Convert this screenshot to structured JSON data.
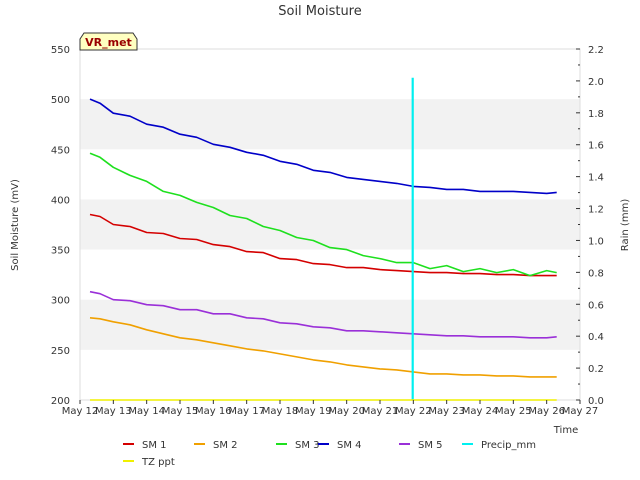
{
  "chart_data": {
    "type": "line",
    "title": "Soil Moisture",
    "xlabel": "Time",
    "ylabel": "Soil Moisture (mV)",
    "y2label": "Rain (mm)",
    "badge": "VR_met",
    "x_ticks": [
      "May 12",
      "May 13",
      "May 14",
      "May 15",
      "May 16",
      "May 17",
      "May 18",
      "May 19",
      "May 20",
      "May 21",
      "May 22",
      "May 23",
      "May 24",
      "May 25",
      "May 26",
      "May 27"
    ],
    "xlim": [
      0,
      15
    ],
    "ylim": [
      200,
      550
    ],
    "y_ticks": [
      "200",
      "250",
      "300",
      "350",
      "400",
      "450",
      "500",
      "550"
    ],
    "y2lim": [
      0.0,
      2.2
    ],
    "y2_ticks": [
      "0.0",
      "0.2",
      "0.4",
      "0.6",
      "0.8",
      "1.0",
      "1.2",
      "1.4",
      "1.6",
      "1.8",
      "2.0",
      "2.2"
    ],
    "series": [
      {
        "name": "SM 1",
        "color": "#d40000",
        "axis": "left",
        "x": [
          0.3,
          0.6,
          1.0,
          1.5,
          2.0,
          2.5,
          3.0,
          3.5,
          4.0,
          4.5,
          5.0,
          5.5,
          6.0,
          6.5,
          7.0,
          7.5,
          8.0,
          8.5,
          9.0,
          9.5,
          10.0,
          10.5,
          11.0,
          11.5,
          12.0,
          12.5,
          13.0,
          13.5,
          14.0,
          14.3
        ],
        "y": [
          385,
          383,
          375,
          373,
          367,
          366,
          361,
          360,
          355,
          353,
          348,
          347,
          341,
          340,
          336,
          335,
          332,
          332,
          330,
          329,
          328,
          327,
          327,
          326,
          326,
          325,
          325,
          324,
          324,
          324
        ]
      },
      {
        "name": "SM 2",
        "color": "#f0a000",
        "axis": "left",
        "x": [
          0.3,
          0.6,
          1.0,
          1.5,
          2.0,
          2.5,
          3.0,
          3.5,
          4.0,
          4.5,
          5.0,
          5.5,
          6.0,
          6.5,
          7.0,
          7.5,
          8.0,
          8.5,
          9.0,
          9.5,
          10.0,
          10.5,
          11.0,
          11.5,
          12.0,
          12.5,
          13.0,
          13.5,
          14.0,
          14.3
        ],
        "y": [
          282,
          281,
          278,
          275,
          270,
          266,
          262,
          260,
          257,
          254,
          251,
          249,
          246,
          243,
          240,
          238,
          235,
          233,
          231,
          230,
          228,
          226,
          226,
          225,
          225,
          224,
          224,
          223,
          223,
          223
        ]
      },
      {
        "name": "SM 3",
        "color": "#1ee01e",
        "axis": "left",
        "x": [
          0.3,
          0.6,
          1.0,
          1.5,
          2.0,
          2.5,
          3.0,
          3.5,
          4.0,
          4.5,
          5.0,
          5.5,
          6.0,
          6.5,
          7.0,
          7.5,
          8.0,
          8.5,
          9.0,
          9.5,
          10.0,
          10.5,
          11.0,
          11.5,
          12.0,
          12.5,
          13.0,
          13.5,
          14.0,
          14.3
        ],
        "y": [
          446,
          442,
          432,
          424,
          418,
          408,
          404,
          397,
          392,
          384,
          381,
          373,
          369,
          362,
          359,
          352,
          350,
          344,
          341,
          337,
          337,
          331,
          334,
          328,
          331,
          327,
          330,
          324,
          329,
          327
        ]
      },
      {
        "name": "SM 4",
        "color": "#0000c8",
        "axis": "left",
        "x": [
          0.3,
          0.6,
          1.0,
          1.5,
          2.0,
          2.5,
          3.0,
          3.5,
          4.0,
          4.5,
          5.0,
          5.5,
          6.0,
          6.5,
          7.0,
          7.5,
          8.0,
          8.5,
          9.0,
          9.5,
          10.0,
          10.5,
          11.0,
          11.5,
          12.0,
          12.5,
          13.0,
          13.5,
          14.0,
          14.3
        ],
        "y": [
          500,
          496,
          486,
          483,
          475,
          472,
          465,
          462,
          455,
          452,
          447,
          444,
          438,
          435,
          429,
          427,
          422,
          420,
          418,
          416,
          413,
          412,
          410,
          410,
          408,
          408,
          408,
          407,
          406,
          407
        ]
      },
      {
        "name": "SM 5",
        "color": "#9a30d8",
        "axis": "left",
        "x": [
          0.3,
          0.6,
          1.0,
          1.5,
          2.0,
          2.5,
          3.0,
          3.5,
          4.0,
          4.5,
          5.0,
          5.5,
          6.0,
          6.5,
          7.0,
          7.5,
          8.0,
          8.5,
          9.0,
          9.5,
          10.0,
          10.5,
          11.0,
          11.5,
          12.0,
          12.5,
          13.0,
          13.5,
          14.0,
          14.3
        ],
        "y": [
          308,
          306,
          300,
          299,
          295,
          294,
          290,
          290,
          286,
          286,
          282,
          281,
          277,
          276,
          273,
          272,
          269,
          269,
          268,
          267,
          266,
          265,
          264,
          264,
          263,
          263,
          263,
          262,
          262,
          263
        ]
      },
      {
        "name": "Precip_mm",
        "color": "#00f0f0",
        "axis": "right",
        "x": [
          9.98,
          9.98
        ],
        "y": [
          0.0,
          2.02
        ]
      },
      {
        "name": "TZ ppt",
        "color": "#f0f000",
        "axis": "right",
        "x": [
          0.3,
          14.3
        ],
        "y": [
          0.0,
          0.0
        ]
      }
    ]
  }
}
